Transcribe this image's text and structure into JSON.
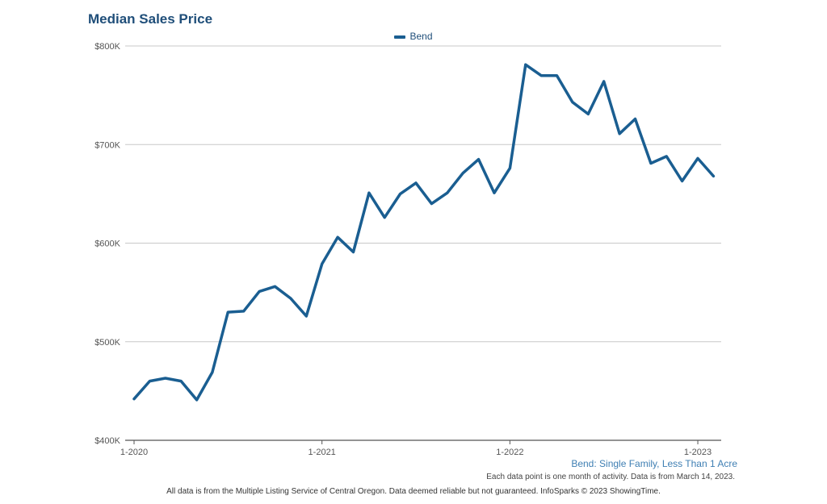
{
  "chart_data": {
    "type": "line",
    "title": "Median Sales Price",
    "legend": [
      "Bend"
    ],
    "series": [
      {
        "name": "Bend",
        "color": "#1a5e91",
        "values": [
          442000,
          460000,
          463000,
          460000,
          441000,
          469000,
          530000,
          531000,
          551000,
          556000,
          544000,
          526000,
          579000,
          606000,
          591000,
          651000,
          626000,
          650000,
          661000,
          640000,
          651000,
          671000,
          685000,
          651000,
          676000,
          781000,
          770000,
          770000,
          743000,
          731000,
          764000,
          711000,
          726000,
          681000,
          688000,
          663000,
          686000,
          668000
        ]
      }
    ],
    "x_start": "1-2020",
    "x_ticks": [
      "1-2020",
      "1-2021",
      "1-2022",
      "1-2023"
    ],
    "y_ticks": [
      "$400K",
      "$500K",
      "$600K",
      "$700K",
      "$800K"
    ],
    "ylim": [
      400000,
      800000
    ],
    "xlabel": "",
    "ylabel": "",
    "grid": true,
    "subtitle": "Bend: Single Family, Less Than 1 Acre",
    "data_note": "Each data point is one month of activity. Data is from March 14, 2023.",
    "footer": "All data is from the Multiple Listing Service of Central Oregon. Data deemed reliable but not guaranteed. InfoSparks © 2023 ShowingTime."
  }
}
